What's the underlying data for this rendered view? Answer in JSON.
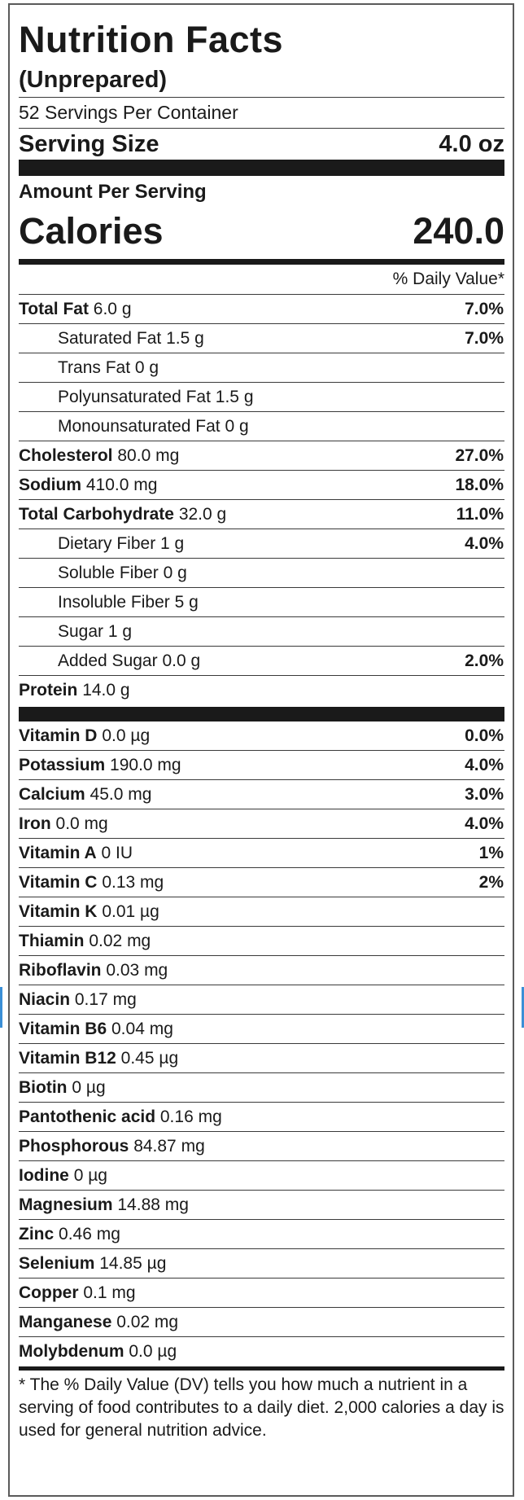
{
  "label": {
    "title": "Nutrition Facts",
    "subtitle": "(Unprepared)",
    "servings_per_container": "52 Servings Per Container",
    "serving_size_label": "Serving Size",
    "serving_size_value": "4.0 oz",
    "amount_per_serving": "Amount Per Serving",
    "calories_label": "Calories",
    "calories_value": "240.0",
    "daily_value_header": "% Daily Value*",
    "macro_rows": [
      {
        "name": "Total Fat",
        "amount": "6.0 g",
        "dv": "7.0%",
        "sub": false
      },
      {
        "name": "Saturated Fat",
        "amount": "1.5 g",
        "dv": "7.0%",
        "sub": true
      },
      {
        "name": "Trans Fat",
        "amount": "0 g",
        "dv": "",
        "sub": true
      },
      {
        "name": "Polyunsaturated Fat",
        "amount": "1.5 g",
        "dv": "",
        "sub": true
      },
      {
        "name": "Monounsaturated Fat",
        "amount": "0 g",
        "dv": "",
        "sub": true
      },
      {
        "name": "Cholesterol",
        "amount": "80.0 mg",
        "dv": "27.0%",
        "sub": false
      },
      {
        "name": "Sodium",
        "amount": "410.0 mg",
        "dv": "18.0%",
        "sub": false
      },
      {
        "name": "Total Carbohydrate",
        "amount": "32.0 g",
        "dv": "11.0%",
        "sub": false
      },
      {
        "name": "Dietary Fiber",
        "amount": "1 g",
        "dv": "4.0%",
        "sub": true
      },
      {
        "name": "Soluble Fiber",
        "amount": "0 g",
        "dv": "",
        "sub": true
      },
      {
        "name": "Insoluble Fiber",
        "amount": "5 g",
        "dv": "",
        "sub": true
      },
      {
        "name": "Sugar",
        "amount": "1 g",
        "dv": "",
        "sub": true
      },
      {
        "name": "Added Sugar",
        "amount": "0.0 g",
        "dv": "2.0%",
        "sub": true
      },
      {
        "name": "Protein",
        "amount": "14.0 g",
        "dv": "",
        "sub": false
      }
    ],
    "micro_rows": [
      {
        "name": "Vitamin D",
        "amount": "0.0 µg",
        "dv": "0.0%"
      },
      {
        "name": "Potassium",
        "amount": "190.0 mg",
        "dv": "4.0%"
      },
      {
        "name": "Calcium",
        "amount": "45.0 mg",
        "dv": "3.0%"
      },
      {
        "name": "Iron",
        "amount": "0.0 mg",
        "dv": "4.0%"
      },
      {
        "name": "Vitamin A",
        "amount": "0 IU",
        "dv": "1%"
      },
      {
        "name": "Vitamin C",
        "amount": "0.13 mg",
        "dv": "2%"
      },
      {
        "name": "Vitamin K",
        "amount": "0.01 µg",
        "dv": ""
      },
      {
        "name": "Thiamin",
        "amount": "0.02 mg",
        "dv": ""
      },
      {
        "name": "Riboflavin",
        "amount": "0.03 mg",
        "dv": ""
      },
      {
        "name": "Niacin",
        "amount": "0.17 mg",
        "dv": ""
      },
      {
        "name": "Vitamin B6",
        "amount": "0.04 mg",
        "dv": ""
      },
      {
        "name": "Vitamin B12",
        "amount": "0.45 µg",
        "dv": ""
      },
      {
        "name": "Biotin",
        "amount": "0 µg",
        "dv": ""
      },
      {
        "name": "Pantothenic acid",
        "amount": "0.16 mg",
        "dv": ""
      },
      {
        "name": "Phosphorous",
        "amount": "84.87 mg",
        "dv": ""
      },
      {
        "name": "Iodine",
        "amount": "0 µg",
        "dv": ""
      },
      {
        "name": "Magnesium",
        "amount": "14.88 mg",
        "dv": ""
      },
      {
        "name": "Zinc",
        "amount": "0.46 mg",
        "dv": ""
      },
      {
        "name": "Selenium",
        "amount": "14.85 µg",
        "dv": ""
      },
      {
        "name": "Copper",
        "amount": "0.1 mg",
        "dv": ""
      },
      {
        "name": "Manganese",
        "amount": "0.02 mg",
        "dv": ""
      },
      {
        "name": "Molybdenum",
        "amount": "0.0 µg",
        "dv": ""
      }
    ],
    "footnote": "* The % Daily Value (DV) tells you how much a nutrient in a serving of food contributes to a daily diet. 2,000 calories a day is used for general nutrition advice."
  },
  "colors": {
    "rule": "#1a1a1a",
    "border": "#5a5a5a",
    "side_marker": "#3b8fd6"
  }
}
